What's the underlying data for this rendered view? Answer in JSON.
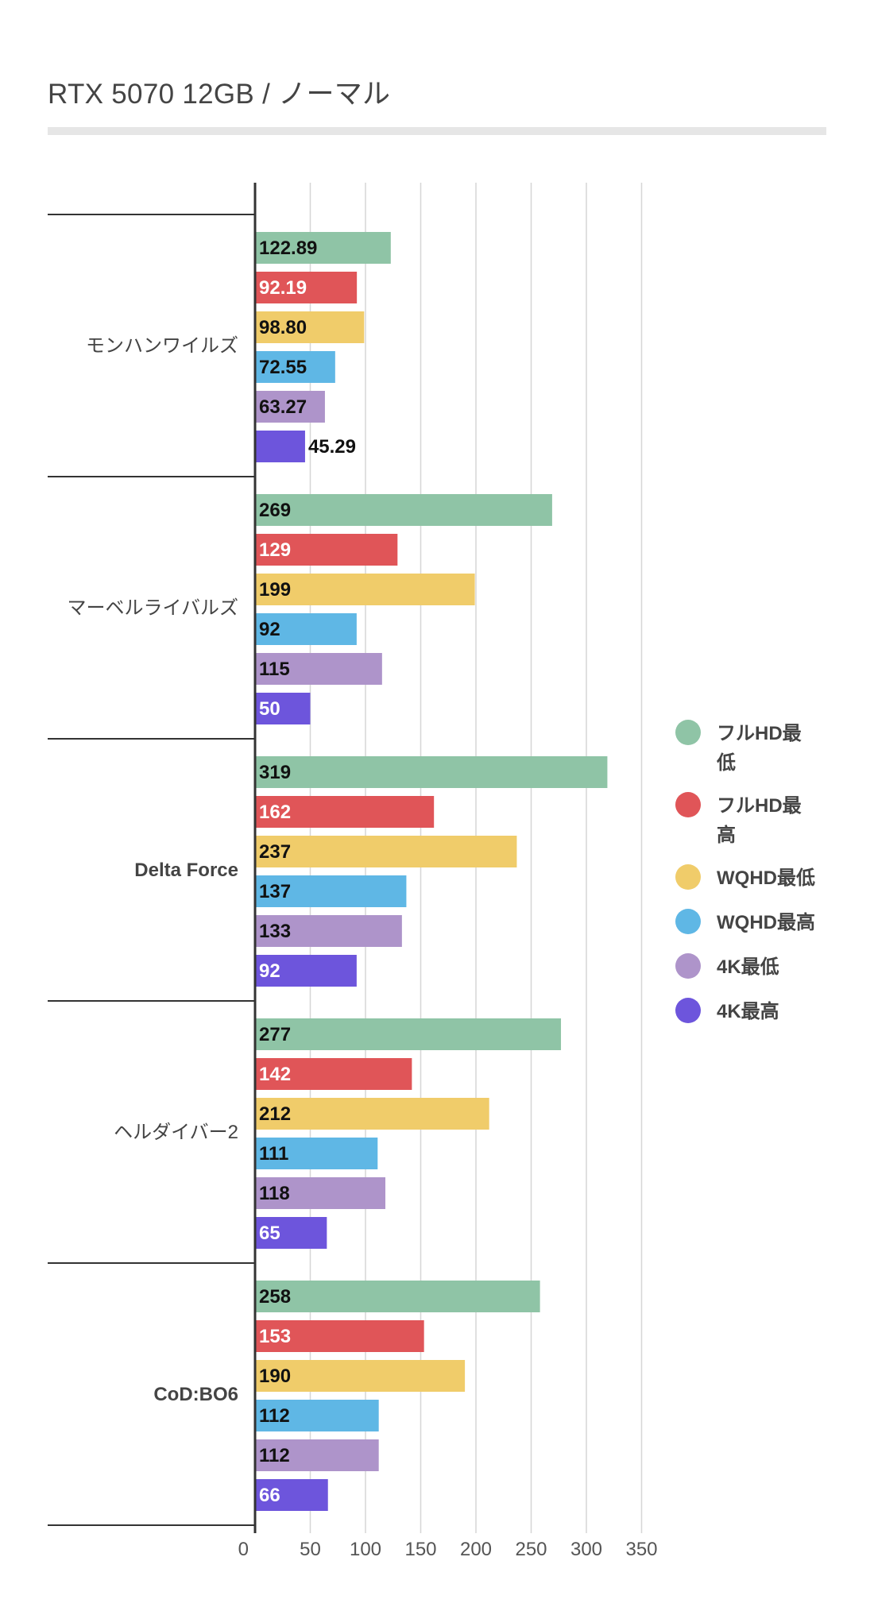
{
  "chart_data": {
    "type": "bar",
    "orientation": "horizontal",
    "title": "RTX 5070 12GB / ノーマル",
    "categories": [
      "モンハンワイルズ",
      "マーベルライバルズ",
      "Delta Force",
      "ヘルダイバー2",
      "CoD:BO6"
    ],
    "series": [
      {
        "name": "フルHD最低",
        "color": "#8fc4a6",
        "values": [
          122.89,
          269,
          319,
          277,
          258
        ],
        "labels": [
          "122.89",
          "269",
          "319",
          "277",
          "258"
        ]
      },
      {
        "name": "フルHD最高",
        "color": "#e05558",
        "values": [
          92.19,
          129,
          162,
          142,
          153
        ],
        "labels": [
          "92.19",
          "129",
          "162",
          "142",
          "153"
        ]
      },
      {
        "name": "WQHD最低",
        "color": "#f0cc6a",
        "values": [
          98.8,
          199,
          237,
          212,
          190
        ],
        "labels": [
          "98.80",
          "199",
          "237",
          "212",
          "190"
        ]
      },
      {
        "name": "WQHD最高",
        "color": "#5fb7e5",
        "values": [
          72.55,
          92,
          137,
          111,
          112
        ],
        "labels": [
          "72.55",
          "92",
          "137",
          "111",
          "112"
        ]
      },
      {
        "name": "4K最低",
        "color": "#ae94ca",
        "values": [
          63.27,
          115,
          133,
          118,
          112
        ],
        "labels": [
          "63.27",
          "115",
          "133",
          "118",
          "112"
        ]
      },
      {
        "name": "4K最高",
        "color": "#6d55dc",
        "values": [
          45.29,
          50,
          92,
          65,
          66
        ],
        "labels": [
          "45.29",
          "50",
          "92",
          "65",
          "66"
        ]
      }
    ],
    "xlim": [
      0,
      350
    ],
    "xticks": [
      "0",
      "50",
      "100",
      "150",
      "200",
      "250",
      "300",
      "350"
    ],
    "xtick_values": [
      0,
      50,
      100,
      150,
      200,
      250,
      300,
      350
    ],
    "grid": true,
    "legend_position": "right"
  }
}
